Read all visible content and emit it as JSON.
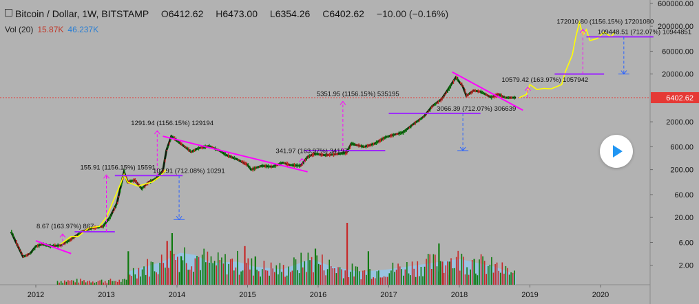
{
  "header": {
    "title": "Bitcoin / Dollar, 1W, BITSTAMP",
    "o_label": "O",
    "o_value": "6412.62",
    "h_label": "H",
    "h_value": "6473.00",
    "l_label": "L",
    "l_value": "6354.26",
    "c_label": "C",
    "c_value": "6402.62",
    "change": "−10.00 (−0.16%)"
  },
  "volume": {
    "label": "Vol (20)",
    "value1": "15.87K",
    "value2": "46.237K"
  },
  "price_tag": "6402.62",
  "colors": {
    "magenta": "#ff00ff",
    "purple": "#9c27ff",
    "blue": "#2962ff",
    "projection": "#ffff00",
    "price_red": "#e53935",
    "candle_up": "#0f7a0f",
    "candle_down": "#c62828",
    "volume_ma": "#90c8f0"
  },
  "chart_data": {
    "type": "line",
    "scale": "log",
    "title": "Bitcoin / Dollar, 1W, BITSTAMP",
    "x_ticks": [
      "2012",
      "2013",
      "2014",
      "2015",
      "2016",
      "2017",
      "2018",
      "2019",
      "2020"
    ],
    "y_ticks": [
      {
        "label": "600000.00",
        "value": 600000
      },
      {
        "label": "200000.00",
        "value": 200000
      },
      {
        "label": "60000.00",
        "value": 60000
      },
      {
        "label": "20000.00",
        "value": 20000
      },
      {
        "label": "2000.00",
        "value": 2000
      },
      {
        "label": "600.00",
        "value": 600
      },
      {
        "label": "200.00",
        "value": 200
      },
      {
        "label": "60.00",
        "value": 60
      },
      {
        "label": "20.00",
        "value": 20
      },
      {
        "label": "6.00",
        "value": 6
      },
      {
        "label": "2.00",
        "value": 2
      }
    ],
    "ylim": [
      0.6,
      800000
    ],
    "current_price": 6402.62,
    "price_series": [
      [
        2011.65,
        10
      ],
      [
        2011.72,
        6
      ],
      [
        2011.82,
        3
      ],
      [
        2011.92,
        3.5
      ],
      [
        2012.0,
        5
      ],
      [
        2012.1,
        5.5
      ],
      [
        2012.2,
        5
      ],
      [
        2012.35,
        5.2
      ],
      [
        2012.5,
        7
      ],
      [
        2012.65,
        10
      ],
      [
        2012.8,
        12
      ],
      [
        2012.95,
        13
      ],
      [
        2013.05,
        20
      ],
      [
        2013.15,
        40
      ],
      [
        2013.25,
        180
      ],
      [
        2013.3,
        110
      ],
      [
        2013.4,
        120
      ],
      [
        2013.5,
        80
      ],
      [
        2013.6,
        110
      ],
      [
        2013.7,
        130
      ],
      [
        2013.8,
        190
      ],
      [
        2013.85,
        500
      ],
      [
        2013.92,
        1000
      ],
      [
        2014.0,
        800
      ],
      [
        2014.1,
        620
      ],
      [
        2014.2,
        470
      ],
      [
        2014.3,
        560
      ],
      [
        2014.45,
        620
      ],
      [
        2014.6,
        500
      ],
      [
        2014.7,
        400
      ],
      [
        2014.85,
        330
      ],
      [
        2015.0,
        250
      ],
      [
        2015.05,
        200
      ],
      [
        2015.2,
        240
      ],
      [
        2015.35,
        230
      ],
      [
        2015.5,
        280
      ],
      [
        2015.6,
        250
      ],
      [
        2015.75,
        240
      ],
      [
        2015.85,
        370
      ],
      [
        2015.95,
        430
      ],
      [
        2016.1,
        400
      ],
      [
        2016.25,
        420
      ],
      [
        2016.4,
        450
      ],
      [
        2016.47,
        700
      ],
      [
        2016.55,
        650
      ],
      [
        2016.65,
        600
      ],
      [
        2016.8,
        700
      ],
      [
        2016.95,
        950
      ],
      [
        2017.1,
        1100
      ],
      [
        2017.2,
        1200
      ],
      [
        2017.35,
        1800
      ],
      [
        2017.5,
        2600
      ],
      [
        2017.62,
        4300
      ],
      [
        2017.75,
        6000
      ],
      [
        2017.85,
        10000
      ],
      [
        2017.95,
        17000
      ],
      [
        2018.05,
        11000
      ],
      [
        2018.1,
        7000
      ],
      [
        2018.2,
        9000
      ],
      [
        2018.3,
        8500
      ],
      [
        2018.45,
        6500
      ],
      [
        2018.55,
        7500
      ],
      [
        2018.65,
        6400
      ],
      [
        2018.75,
        6400
      ],
      [
        2018.8,
        6402.62
      ]
    ],
    "projection_series": [
      [
        2012.35,
        5.5
      ],
      [
        2012.5,
        8
      ],
      [
        2012.6,
        8
      ],
      [
        2012.75,
        12
      ],
      [
        2012.9,
        13
      ],
      [
        2013.0,
        20
      ],
      [
        2013.1,
        45
      ],
      [
        2013.2,
        100
      ],
      [
        2013.25,
        160
      ],
      [
        2013.3,
        110
      ],
      [
        2013.45,
        90
      ],
      [
        2013.55,
        100
      ],
      [
        2013.65,
        110
      ],
      [
        2013.75,
        140
      ],
      [
        2013.85,
        200
      ],
      [
        2018.85,
        6400
      ],
      [
        2018.95,
        7500
      ],
      [
        2019.0,
        12000
      ],
      [
        2019.1,
        9500
      ],
      [
        2019.2,
        10000
      ],
      [
        2019.3,
        9800
      ],
      [
        2019.45,
        12000
      ],
      [
        2019.5,
        22000
      ],
      [
        2019.6,
        50000
      ],
      [
        2019.65,
        120000
      ],
      [
        2019.7,
        240000
      ],
      [
        2019.75,
        130000
      ],
      [
        2019.8,
        170000
      ],
      [
        2019.85,
        100000
      ],
      [
        2019.95,
        110000
      ],
      [
        2020.05,
        150000
      ],
      [
        2020.15,
        120000
      ],
      [
        2020.2,
        150000
      ]
    ],
    "trendlines": [
      {
        "from": [
          2012.0,
          6.5
        ],
        "to": [
          2012.5,
          3.5
        ]
      },
      {
        "from": [
          2013.8,
          1000
        ],
        "to": [
          2015.85,
          180
        ]
      },
      {
        "from": [
          2017.9,
          22000
        ],
        "to": [
          2018.9,
          3500
        ]
      }
    ],
    "support_levels": [
      {
        "x1": 2012.55,
        "x2": 2013.12,
        "value": 10,
        "color": "purple"
      },
      {
        "x1": 2013.12,
        "x2": 2014.08,
        "value": 150,
        "color": "purple"
      },
      {
        "x1": 2015.8,
        "x2": 2016.95,
        "value": 500,
        "color": "purple"
      },
      {
        "x1": 2017.0,
        "x2": 2018.3,
        "value": 3000,
        "color": "purple"
      },
      {
        "x1": 2019.35,
        "x2": 2020.05,
        "value": 20000,
        "color": "purple"
      },
      {
        "x1": 2019.8,
        "x2": 2020.75,
        "value": 120000,
        "color": "purple"
      }
    ],
    "measures": [
      {
        "x": 2012.38,
        "from": 5,
        "to": 9,
        "color": "magenta",
        "dir": "up",
        "label": "8.67 (163.97%) 867"
      },
      {
        "x": 2013.0,
        "from": 10,
        "to": 155,
        "color": "magenta",
        "dir": "up",
        "label": "155.91 (1156.15%) 15591"
      },
      {
        "x": 2013.72,
        "from": 150,
        "to": 1300,
        "color": "magenta",
        "dir": "up",
        "label": "1291.94 (1156.15%) 129194"
      },
      {
        "x": 2014.03,
        "from": 150,
        "to": 18,
        "color": "blue",
        "dir": "down",
        "label": "102.91 (712.08%) 10291"
      },
      {
        "x": 2015.77,
        "from": 250,
        "to": 340,
        "color": "magenta",
        "dir": "up",
        "label": "341.97 (163.97%) 34197"
      },
      {
        "x": 2016.35,
        "from": 500,
        "to": 5350,
        "color": "magenta",
        "dir": "up",
        "label": "5351.95 (1156.15%) 535195"
      },
      {
        "x": 2018.05,
        "from": 3000,
        "to": 500,
        "color": "blue",
        "dir": "down",
        "label": "3066.39 (712.07%) 306639"
      },
      {
        "x": 2018.97,
        "from": 6400,
        "to": 10580,
        "color": "magenta",
        "dir": "up",
        "label": "10579.42 (163.97%) 1057942"
      },
      {
        "x": 2019.75,
        "from": 20000,
        "to": 172000,
        "color": "magenta",
        "dir": "up",
        "label": "172010.80 (1156.15%) 17201080"
      },
      {
        "x": 2020.33,
        "from": 120000,
        "to": 20000,
        "color": "blue",
        "dir": "down",
        "label": "109448.51 (712.07%) 10944851"
      }
    ],
    "volume": {
      "ma": [
        [
          2013.3,
          0.25
        ],
        [
          2013.8,
          0.45
        ],
        [
          2014.05,
          0.62
        ],
        [
          2014.25,
          0.58
        ],
        [
          2014.5,
          0.42
        ],
        [
          2014.85,
          0.45
        ],
        [
          2015.1,
          0.35
        ],
        [
          2015.5,
          0.3
        ],
        [
          2015.9,
          0.5
        ],
        [
          2016.2,
          0.35
        ],
        [
          2016.6,
          0.25
        ],
        [
          2017.0,
          0.3
        ],
        [
          2017.5,
          0.4
        ],
        [
          2018.0,
          0.5
        ],
        [
          2018.5,
          0.35
        ],
        [
          2018.8,
          0.2
        ]
      ],
      "spikes": [
        [
          2013.3,
          0.65
        ],
        [
          2013.85,
          0.85
        ],
        [
          2013.92,
          1.0
        ],
        [
          2014.05,
          0.55
        ],
        [
          2014.95,
          0.75
        ],
        [
          2015.1,
          0.55
        ],
        [
          2015.95,
          0.7
        ],
        [
          2016.4,
          1.2
        ],
        [
          2016.7,
          0.65
        ],
        [
          2017.7,
          0.8
        ],
        [
          2017.75,
          0.45
        ],
        [
          2017.85,
          0.45
        ],
        [
          2018.2,
          0.5
        ]
      ]
    }
  }
}
